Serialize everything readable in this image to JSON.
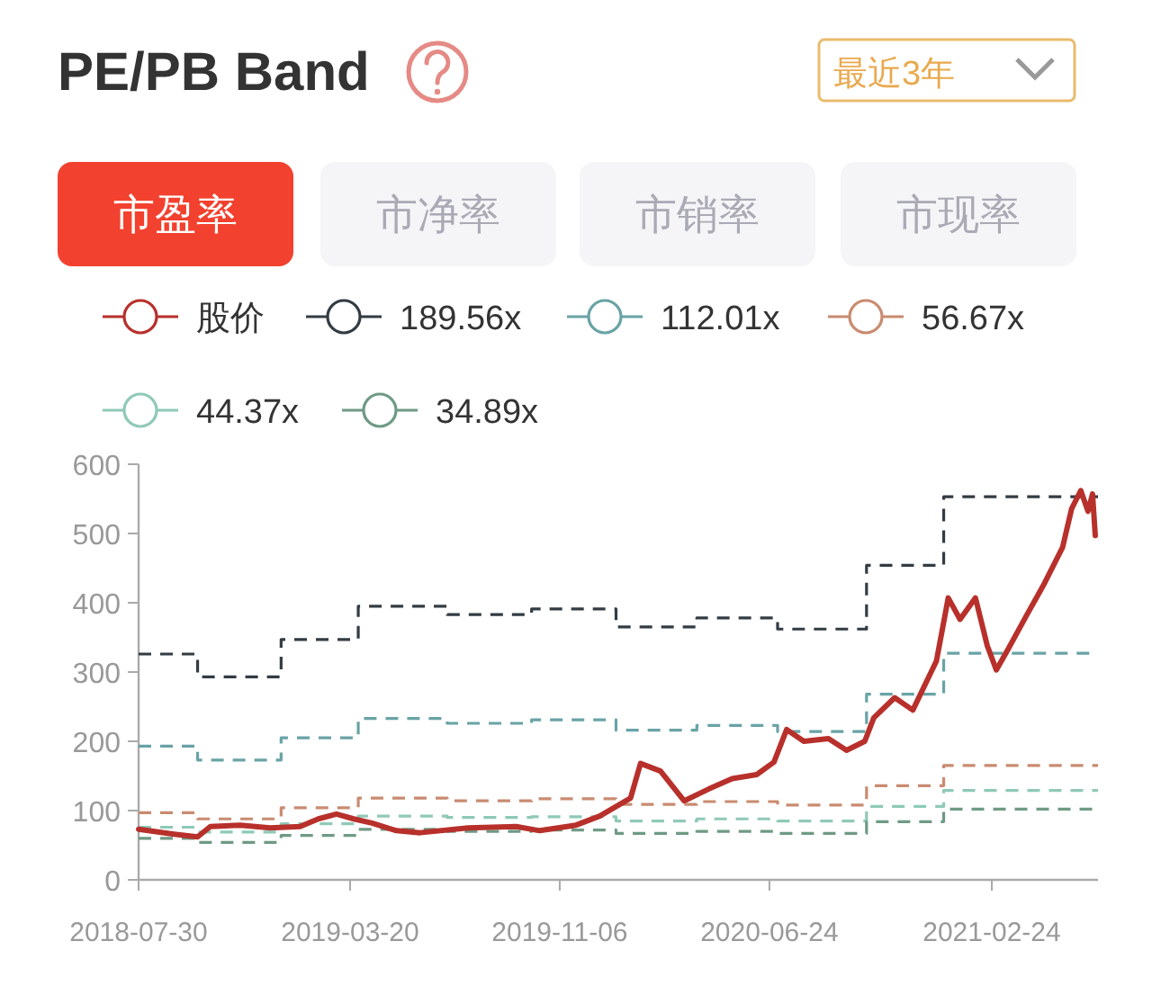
{
  "chart_data": {
    "type": "step",
    "title": "PE/PB Band",
    "annotations": [
      "最近3年",
      "市盈率",
      "市净率",
      "市销率",
      "市现率"
    ],
    "legend": "top",
    "grid": false,
    "xlim": [
      "2018-07-30",
      "2021-06-21"
    ],
    "xticks": [
      "2018-07-30",
      "2019-03-20",
      "2019-11-06",
      "2020-06-24",
      "2021-02-24"
    ],
    "ylim": [
      0,
      600
    ],
    "yticks": [
      0,
      100,
      200,
      300,
      400,
      500,
      600
    ],
    "series": [
      {
        "name": "股价",
        "type": "line",
        "color": "#b8302b",
        "line_style": "solid",
        "x": [
          "2018-07-30",
          "2018-09-07",
          "2018-10-03",
          "2018-10-17",
          "2018-11-19",
          "2018-12-22",
          "2019-01-24",
          "2019-02-13",
          "2019-03-05",
          "2019-03-24",
          "2019-04-13",
          "2019-05-10",
          "2019-06-05",
          "2019-07-28",
          "2019-09-19",
          "2019-10-15",
          "2019-11-24",
          "2019-12-20",
          "2020-01-23",
          "2020-02-03",
          "2020-02-25",
          "2020-03-22",
          "2020-04-18",
          "2020-05-14",
          "2020-06-10",
          "2020-06-29",
          "2020-07-13",
          "2020-08-01",
          "2020-08-28",
          "2020-09-17",
          "2020-10-07",
          "2020-10-17",
          "2020-11-09",
          "2020-11-29",
          "2020-12-25",
          "2021-01-07",
          "2021-01-20",
          "2021-02-06",
          "2021-02-19",
          "2021-03-01",
          "2021-03-14",
          "2021-04-03",
          "2021-04-23",
          "2021-05-13",
          "2021-05-23",
          "2021-06-02",
          "2021-06-10",
          "2021-06-15",
          "2021-06-18"
        ],
        "values": [
          73,
          66,
          62,
          77,
          79,
          75,
          77,
          88,
          95,
          88,
          82,
          71,
          68,
          75,
          77,
          71,
          79,
          92,
          118,
          168,
          157,
          114,
          131,
          146,
          152,
          170,
          217,
          200,
          204,
          187,
          200,
          234,
          263,
          245,
          316,
          407,
          376,
          407,
          338,
          303,
          333,
          381,
          428,
          480,
          536,
          562,
          532,
          557,
          497
        ]
      },
      {
        "name": "189.56x",
        "color": "#333c43",
        "line_style": "dashed",
        "x": [
          "2018-07-30",
          "2018-10-03",
          "2019-01-03",
          "2019-03-29",
          "2019-07-05",
          "2019-10-06",
          "2020-01-07",
          "2020-04-05",
          "2020-07-03",
          "2020-10-09",
          "2021-01-02",
          "2021-06-21"
        ],
        "values": [
          326,
          293,
          347,
          395,
          383,
          391,
          365,
          378,
          362,
          454,
          553,
          553
        ]
      },
      {
        "name": "112.01x",
        "color": "#69a3a6",
        "line_style": "dashed",
        "x": [
          "2018-07-30",
          "2018-10-03",
          "2019-01-03",
          "2019-03-29",
          "2019-07-05",
          "2019-10-06",
          "2020-01-07",
          "2020-04-05",
          "2020-07-03",
          "2020-10-09",
          "2021-01-02",
          "2021-06-21"
        ],
        "values": [
          193,
          173,
          205,
          233,
          226,
          231,
          216,
          223,
          214,
          268,
          327,
          327
        ]
      },
      {
        "name": "56.67x",
        "color": "#c98b70",
        "line_style": "dashed",
        "x": [
          "2018-07-30",
          "2018-10-03",
          "2019-01-03",
          "2019-03-29",
          "2019-07-05",
          "2019-10-06",
          "2020-01-07",
          "2020-04-05",
          "2020-07-03",
          "2020-10-09",
          "2021-01-02",
          "2021-06-21"
        ],
        "values": [
          97,
          88,
          104,
          118,
          114,
          117,
          109,
          113,
          108,
          136,
          165,
          165
        ]
      },
      {
        "name": "44.37x",
        "color": "#8fc9b8",
        "line_style": "dashed",
        "x": [
          "2018-07-30",
          "2018-10-03",
          "2019-01-03",
          "2019-03-29",
          "2019-07-05",
          "2019-10-06",
          "2020-01-07",
          "2020-04-05",
          "2020-07-03",
          "2020-10-09",
          "2021-01-02",
          "2021-06-21"
        ],
        "values": [
          76,
          69,
          81,
          92,
          90,
          91,
          85,
          88,
          85,
          106,
          129,
          129
        ]
      },
      {
        "name": "34.89x",
        "color": "#6f9a85",
        "line_style": "dashed",
        "x": [
          "2018-07-30",
          "2018-10-03",
          "2019-01-03",
          "2019-03-29",
          "2019-07-05",
          "2019-10-06",
          "2020-01-07",
          "2020-04-05",
          "2020-07-03",
          "2020-10-09",
          "2021-01-02",
          "2021-06-21"
        ],
        "values": [
          60,
          54,
          64,
          73,
          70,
          72,
          67,
          70,
          67,
          84,
          102,
          102
        ]
      }
    ]
  }
}
